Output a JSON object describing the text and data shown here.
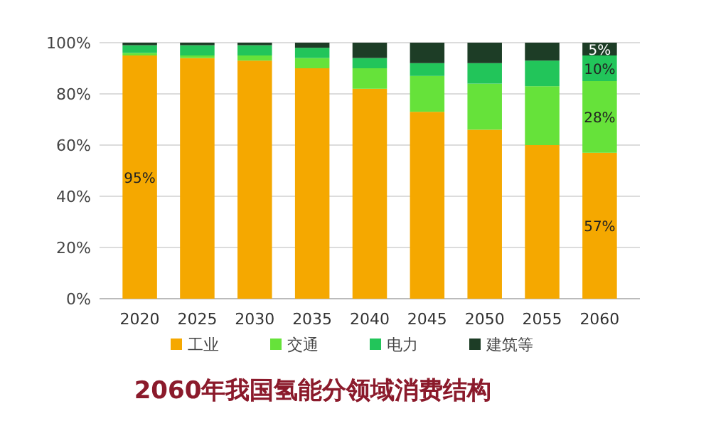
{
  "chart_data": {
    "type": "bar",
    "title": "2060年我国氢能分领域消费结构",
    "stacked": true,
    "categories": [
      "2020",
      "2025",
      "2030",
      "2035",
      "2040",
      "2045",
      "2050",
      "2055",
      "2060"
    ],
    "series": [
      {
        "name": "工业",
        "color": "#f5a800",
        "values": [
          95,
          94,
          93,
          90,
          82,
          73,
          66,
          60,
          57
        ],
        "value_labels": [
          "95%",
          null,
          null,
          null,
          null,
          null,
          null,
          null,
          "57%"
        ]
      },
      {
        "name": "交通",
        "color": "#66e23a",
        "values": [
          1,
          1,
          2,
          4,
          8,
          14,
          18,
          23,
          28
        ],
        "value_labels": [
          null,
          null,
          null,
          null,
          null,
          null,
          null,
          null,
          "28%"
        ]
      },
      {
        "name": "电力",
        "color": "#22c55a",
        "values": [
          3,
          4,
          4,
          4,
          4,
          5,
          8,
          10,
          10
        ],
        "value_labels": [
          null,
          null,
          null,
          null,
          null,
          null,
          null,
          null,
          "10%"
        ]
      },
      {
        "name": "建筑等",
        "color": "#1d3d26",
        "values": [
          1,
          1,
          1,
          2,
          6,
          8,
          8,
          7,
          5
        ],
        "value_labels": [
          null,
          null,
          null,
          null,
          null,
          null,
          null,
          null,
          "5%"
        ]
      }
    ],
    "ylim": [
      0,
      100
    ],
    "yticks": [
      {
        "value": 0,
        "label": "0%"
      },
      {
        "value": 20,
        "label": "20%"
      },
      {
        "value": 40,
        "label": "40%"
      },
      {
        "value": 60,
        "label": "60%"
      },
      {
        "value": 80,
        "label": "80%"
      },
      {
        "value": 100,
        "label": "100%"
      }
    ],
    "grid": "y",
    "legend": "bottom"
  }
}
